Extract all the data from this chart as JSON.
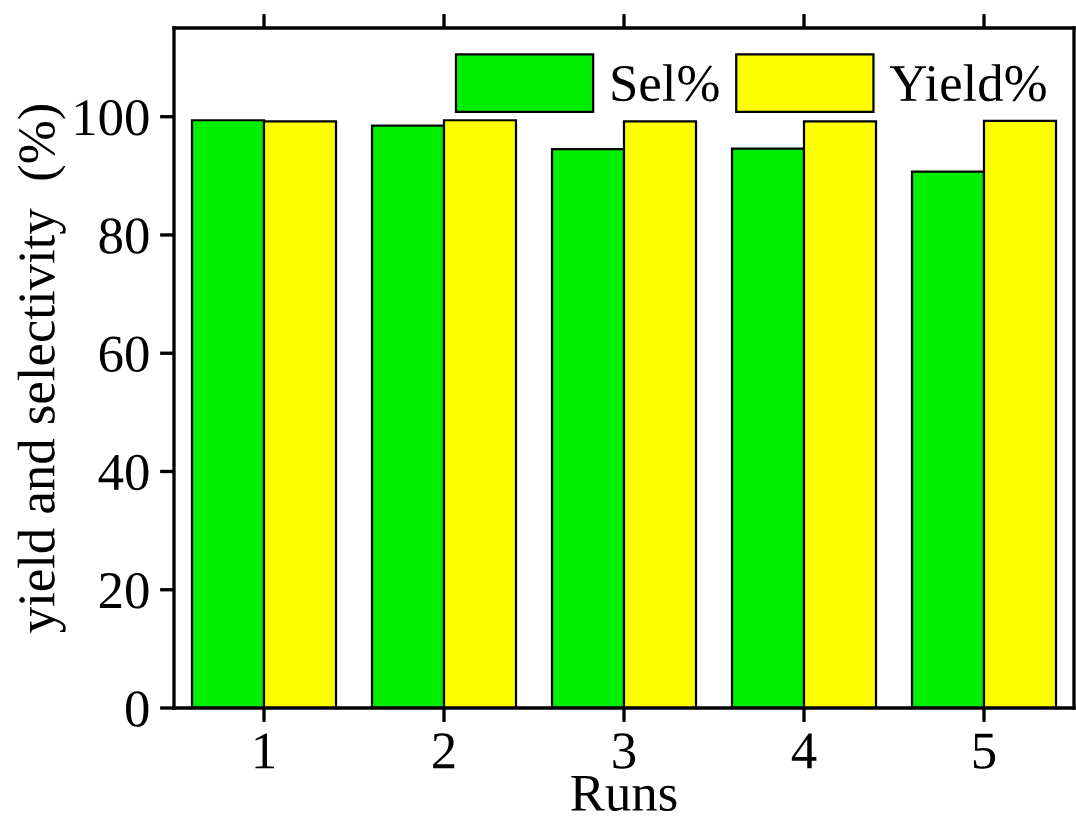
{
  "chart_data": {
    "type": "bar",
    "xlabel": "Runs",
    "ylabel": "yield and selectivity  (%)",
    "categories": [
      "1",
      "2",
      "3",
      "4",
      "5"
    ],
    "series": [
      {
        "name": "Sel%",
        "color": "#00ee00",
        "values": [
          99.4,
          98.5,
          94.5,
          94.6,
          90.7
        ]
      },
      {
        "name": "Yield%",
        "color": "#ffff00",
        "values": [
          99.2,
          99.4,
          99.2,
          99.2,
          99.3
        ]
      }
    ],
    "ylim": [
      0,
      115
    ],
    "yticks": [
      0,
      20,
      40,
      60,
      80,
      100
    ],
    "grid": false,
    "legend": "top right"
  }
}
